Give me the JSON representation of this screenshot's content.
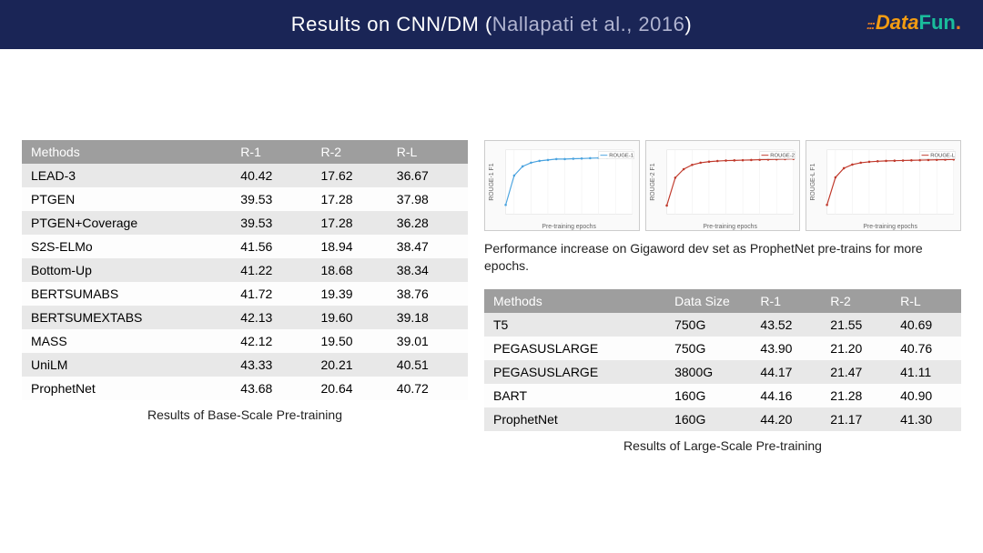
{
  "header": {
    "title_main": "Results on CNN/DM (",
    "title_cite": "Nallapati et al., 2016",
    "title_end": ")",
    "logo_data": "Data",
    "logo_fun": "Fun",
    "logo_dot": "."
  },
  "table1": {
    "columns": [
      "Methods",
      "R-1",
      "R-2",
      "R-L"
    ],
    "rows": [
      [
        "LEAD-3",
        "40.42",
        "17.62",
        "36.67"
      ],
      [
        "PTGEN",
        "39.53",
        "17.28",
        "37.98"
      ],
      [
        "PTGEN+Coverage",
        "39.53",
        "17.28",
        "36.28"
      ],
      [
        "S2S-ELMo",
        "41.56",
        "18.94",
        "38.47"
      ],
      [
        "Bottom-Up",
        "41.22",
        "18.68",
        "38.34"
      ],
      [
        "BERTSUMABS",
        "41.72",
        "19.39",
        "38.76"
      ],
      [
        "BERTSUMEXTABS",
        "42.13",
        "19.60",
        "39.18"
      ],
      [
        "MASS",
        "42.12",
        "19.50",
        "39.01"
      ],
      [
        "UniLM",
        "43.33",
        "20.21",
        "40.51"
      ],
      [
        "ProphetNet",
        "43.68",
        "20.64",
        "40.72"
      ]
    ],
    "caption": "Results of Base-Scale Pre-training",
    "col_widths": [
      "47%",
      "18%",
      "17%",
      "18%"
    ]
  },
  "charts": {
    "x_label": "Pre-training epochs",
    "series": [
      {
        "label": "ROUGE-1",
        "y_label": "ROUGE-1 F1",
        "color": "#4aa3df",
        "y_min": 42.5,
        "y_max": 46.0,
        "x": [
          1,
          2,
          3,
          4,
          5,
          6,
          7,
          8,
          9,
          10,
          11,
          12,
          13,
          14,
          15,
          16
        ],
        "y": [
          43.0,
          44.6,
          45.1,
          45.3,
          45.4,
          45.45,
          45.5,
          45.5,
          45.52,
          45.53,
          45.55,
          45.56,
          45.57,
          45.58,
          45.58,
          45.6
        ]
      },
      {
        "label": "ROUGE-2",
        "y_label": "ROUGE-2 F1",
        "color": "#c0392b",
        "y_min": 21.0,
        "y_max": 24.0,
        "x": [
          1,
          2,
          3,
          4,
          5,
          6,
          7,
          8,
          9,
          10,
          11,
          12,
          13,
          14,
          15,
          16
        ],
        "y": [
          21.4,
          22.7,
          23.1,
          23.3,
          23.4,
          23.45,
          23.48,
          23.5,
          23.51,
          23.52,
          23.53,
          23.54,
          23.55,
          23.56,
          23.57,
          23.58
        ]
      },
      {
        "label": "ROUGE-L",
        "y_label": "ROUGE-L F1",
        "color": "#c0392b",
        "y_min": 39.5,
        "y_max": 43.0,
        "x": [
          1,
          2,
          3,
          4,
          5,
          6,
          7,
          8,
          9,
          10,
          11,
          12,
          13,
          14,
          15,
          16
        ],
        "y": [
          40.0,
          41.5,
          42.0,
          42.2,
          42.3,
          42.35,
          42.38,
          42.4,
          42.41,
          42.42,
          42.43,
          42.44,
          42.45,
          42.46,
          42.47,
          42.48
        ]
      }
    ],
    "caption": "Performance increase on Gigaword dev set as ProphetNet pre-trains for more epochs."
  },
  "table2": {
    "columns": [
      "Methods",
      "Data Size",
      "R-1",
      "R-2",
      "R-L"
    ],
    "rows": [
      [
        "T5",
        "750G",
        "43.52",
        "21.55",
        "40.69"
      ],
      [
        "PEGASUSLARGE",
        "750G",
        "43.90",
        "21.20",
        "40.76"
      ],
      [
        "PEGASUSLARGE",
        "3800G",
        "44.17",
        "21.47",
        "41.11"
      ],
      [
        "BART",
        "160G",
        "44.16",
        "21.28",
        "40.90"
      ],
      [
        "ProphetNet",
        "160G",
        "44.20",
        "21.17",
        "41.30"
      ]
    ],
    "caption": "Results of Large-Scale Pre-training"
  }
}
